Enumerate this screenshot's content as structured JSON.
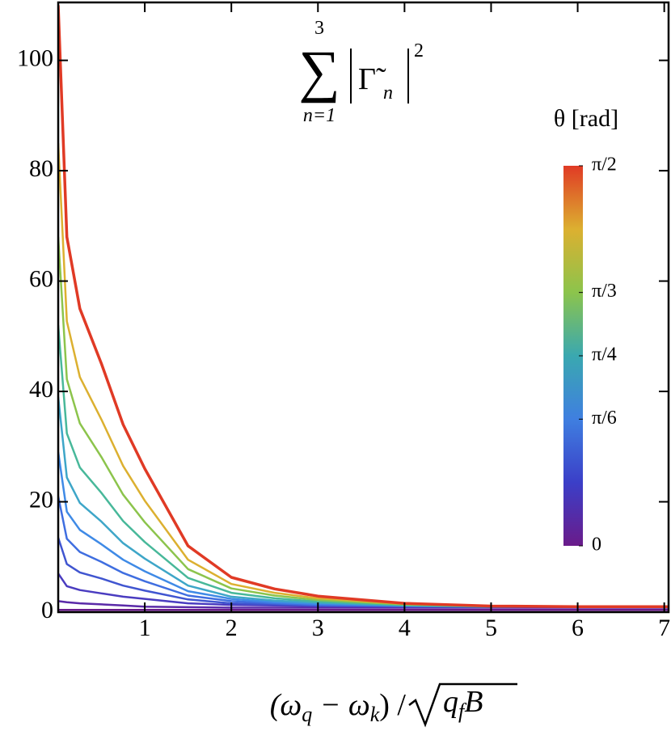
{
  "chart_data": {
    "type": "line",
    "title": [
      "∑",
      "3",
      "n=1",
      "Γ̃",
      "n",
      "2"
    ],
    "xlabel": [
      "(ω",
      "q",
      " − ω",
      "k",
      ") /",
      "q",
      "f",
      "B"
    ],
    "x": [
      0,
      0.1,
      0.25,
      0.5,
      0.75,
      1,
      1.5,
      2,
      2.5,
      3,
      4,
      5,
      6,
      7.05
    ],
    "series": [
      {
        "color": "#6a1b8a",
        "values": [
          0.4,
          0.4,
          0.4,
          0.4,
          0.4,
          0.4,
          0.4,
          0.4,
          0.4,
          0.4,
          0.4,
          0.4,
          0.4,
          0.4
        ]
      },
      {
        "color": "#5a2aa8",
        "values": [
          2,
          1.8,
          1.6,
          1.4,
          1.2,
          1,
          0.9,
          0.8,
          0.8,
          0.8,
          0.8,
          0.8,
          0.8,
          0.8
        ]
      },
      {
        "color": "#4a3cc0",
        "values": [
          7,
          4.7,
          4,
          3.4,
          2.8,
          2.4,
          1.6,
          1.3,
          1.2,
          1.1,
          1,
          1,
          1,
          1
        ]
      },
      {
        "color": "#4055d0",
        "values": [
          13.5,
          8.7,
          7.2,
          6.1,
          4.8,
          3.9,
          2.3,
          1.6,
          1.4,
          1.2,
          1.1,
          1,
          1,
          1
        ]
      },
      {
        "color": "#3f6ee0",
        "values": [
          21,
          13.3,
          10.9,
          9.1,
          7.1,
          5.6,
          3,
          2,
          1.6,
          1.3,
          1.1,
          1,
          1,
          1
        ]
      },
      {
        "color": "#3f8ae6",
        "values": [
          29,
          18.2,
          14.9,
          12.3,
          9.5,
          7.4,
          3.8,
          2.4,
          1.8,
          1.5,
          1.2,
          1,
          1,
          1
        ]
      },
      {
        "color": "#3ea6c8",
        "values": [
          39,
          24.4,
          19.8,
          16.4,
          12.5,
          9.7,
          4.8,
          2.8,
          2.1,
          1.7,
          1.2,
          1,
          1,
          1
        ]
      },
      {
        "color": "#48b89a",
        "values": [
          52,
          32.4,
          26.2,
          21.6,
          16.5,
          12.7,
          6.2,
          3.5,
          2.5,
          1.9,
          1.3,
          1,
          1,
          1
        ]
      },
      {
        "color": "#8cc44c",
        "values": [
          68,
          42.2,
          34.2,
          28.1,
          21.3,
          16.3,
          7.8,
          4.3,
          3,
          2.2,
          1.4,
          1.1,
          1,
          1
        ]
      },
      {
        "color": "#dcb030",
        "values": [
          85,
          52.7,
          42.6,
          34.9,
          26.5,
          20.2,
          9.5,
          5.1,
          3.5,
          2.5,
          1.5,
          1.1,
          1,
          1
        ]
      },
      {
        "color": "#e03a25",
        "values": [
          110,
          68,
          55,
          45,
          34,
          26,
          12,
          6.3,
          4.2,
          2.9,
          1.6,
          1.1,
          1,
          1
        ]
      }
    ],
    "xlim": [
      0,
      7.05
    ],
    "xticks": [
      1,
      2,
      3,
      4,
      5,
      6,
      7
    ],
    "ylim": [
      0,
      110.5
    ],
    "yticks": [
      0,
      20,
      40,
      60,
      80,
      100
    ],
    "colorbar": {
      "label": "θ [rad]",
      "lim": [
        0,
        1.5708
      ],
      "colors": [
        "#6a1b8a",
        "#3b3fc8",
        "#3f7fe0",
        "#3aa8b0",
        "#8cc44c",
        "#dcb030",
        "#e03a25"
      ],
      "ticks": [
        0,
        {
          "value": 0.5236,
          "label": "π/6"
        },
        {
          "value": 0.7854,
          "label": "π/4"
        },
        {
          "value": 1.0472,
          "label": "π/3"
        },
        {
          "value": 1.5708,
          "label": "π/2"
        }
      ]
    }
  }
}
